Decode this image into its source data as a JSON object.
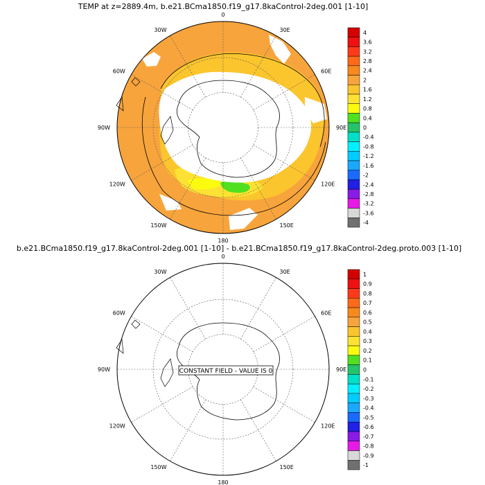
{
  "panels": [
    {
      "title": "TEMP at z=2889.4m, b.e21.BCma1850.f19_g17.8kaControl-2deg.001 [1-10]",
      "longitude_labels": [
        "0",
        "30E",
        "60E",
        "90E",
        "120E",
        "150E",
        "180",
        "150W",
        "120W",
        "90W",
        "60W",
        "30W"
      ],
      "colorbar": {
        "labels": [
          "4",
          "3.6",
          "3.2",
          "2.8",
          "2.4",
          "2",
          "1.6",
          "1.2",
          "0.8",
          "0.4",
          "0",
          "-0.4",
          "-0.8",
          "-1.2",
          "-1.6",
          "-2",
          "-2.4",
          "-2.8",
          "-3.2",
          "-3.6",
          "-4"
        ],
        "colors": [
          "#d40000",
          "#ee1111",
          "#ff3a1a",
          "#ff6a1a",
          "#f7891e",
          "#f7a43c",
          "#fbc52e",
          "#fde233",
          "#fbfb10",
          "#50e020",
          "#24c46b",
          "#00e0c8",
          "#00f0ff",
          "#00ccff",
          "#1aa8ff",
          "#1a6aff",
          "#2020e6",
          "#8a1ae6",
          "#e61ae6",
          "#d8d8d8",
          "#707070"
        ]
      }
    },
    {
      "title": "b.e21.BCma1850.f19_g17.8kaControl-2deg.001 [1-10] - b.e21.BCma1850.f19_g17.8kaControl-2deg.proto.003 [1-10]",
      "longitude_labels": [
        "0",
        "30E",
        "60E",
        "90E",
        "120E",
        "150E",
        "180",
        "150W",
        "120W",
        "90W",
        "60W",
        "30W"
      ],
      "annotation": "CONSTANT FIELD - VALUE IS 0",
      "colorbar": {
        "labels": [
          "1",
          "0.9",
          "0.8",
          "0.7",
          "0.6",
          "0.5",
          "0.4",
          "0.3",
          "0.2",
          "0.1",
          "0",
          "-0.1",
          "-0.2",
          "-0.3",
          "-0.4",
          "-0.5",
          "-0.6",
          "-0.7",
          "-0.8",
          "-0.9",
          "-1"
        ],
        "colors": [
          "#d40000",
          "#ee1111",
          "#ff3a1a",
          "#ff6a1a",
          "#f7891e",
          "#f7a43c",
          "#fbc52e",
          "#fde233",
          "#fbfb10",
          "#50e020",
          "#24c46b",
          "#00e0c8",
          "#00f0ff",
          "#00ccff",
          "#1aa8ff",
          "#1a6aff",
          "#2020e6",
          "#8a1ae6",
          "#e61ae6",
          "#d8d8d8",
          "#707070"
        ]
      }
    }
  ]
}
